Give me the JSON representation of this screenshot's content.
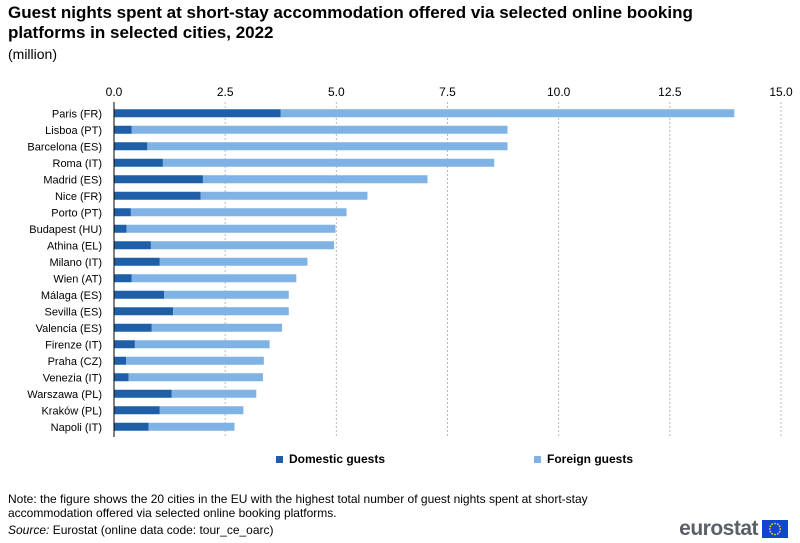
{
  "title": "Guest nights spent at short-stay accommodation offered via selected online booking platforms in selected cities, 2022",
  "subtitle": "(million)",
  "colors": {
    "domestic": "#1f5fa8",
    "foreign": "#7fb3e6",
    "grid": "#b8b8b8"
  },
  "chart_data": {
    "type": "bar",
    "orientation": "horizontal",
    "stacked": true,
    "categories": [
      "Paris (FR)",
      "Lisboa (PT)",
      "Barcelona (ES)",
      "Roma (IT)",
      "Madrid (ES)",
      "Nice (FR)",
      "Porto (PT)",
      "Budapest (HU)",
      "Athina (EL)",
      "Milano (IT)",
      "Wien (AT)",
      "Málaga (ES)",
      "Sevilla (ES)",
      "Valencia (ES)",
      "Firenze (IT)",
      "Praha (CZ)",
      "Venezia (IT)",
      "Warszawa (PL)",
      "Kraków (PL)",
      "Napoli (IT)"
    ],
    "series": [
      {
        "name": "Domestic guests",
        "values": [
          3.75,
          0.4,
          0.75,
          1.1,
          2.0,
          1.95,
          0.38,
          0.28,
          0.83,
          1.03,
          0.4,
          1.13,
          1.33,
          0.85,
          0.47,
          0.27,
          0.33,
          1.3,
          1.03,
          0.78
        ]
      },
      {
        "name": "Foreign guests",
        "values": [
          10.2,
          8.45,
          8.1,
          7.45,
          5.05,
          3.75,
          4.85,
          4.7,
          4.12,
          3.32,
          3.7,
          2.8,
          2.6,
          2.93,
          3.03,
          3.1,
          3.02,
          1.9,
          1.88,
          1.93
        ]
      }
    ],
    "xlim": [
      0,
      15
    ],
    "xticks": [
      "0.0",
      "2.5",
      "5.0",
      "7.5",
      "10.0",
      "12.5",
      "15.0"
    ],
    "grid": "vertical dashed",
    "legend_position": "bottom"
  },
  "note": "Note: the figure shows the 20 cities in the EU with the highest total number of guest nights spent at short-stay accommodation offered via selected online booking platforms.",
  "source_label": "Source:",
  "source_text": "Eurostat (online data code: tour_ce_oarc)",
  "logo_text": "eurostat"
}
